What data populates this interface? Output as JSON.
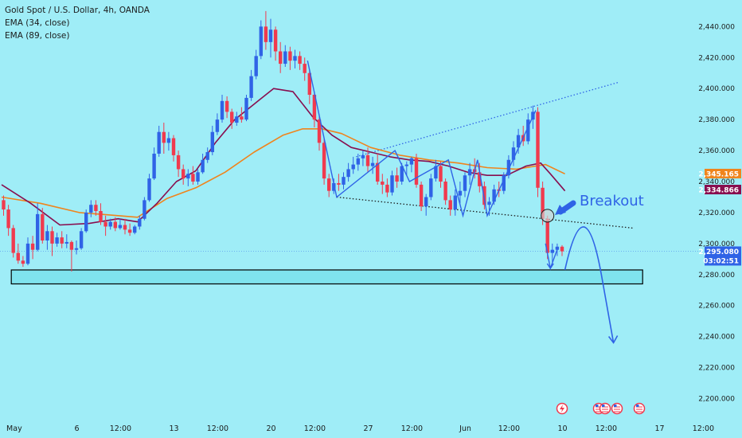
{
  "chart_data": {
    "type": "candlestick",
    "title": "Gold Spot / U.S. Dollar, 4h, OANDA",
    "indicators": [
      "EMA (34, close)",
      "EMA (89, close)"
    ],
    "ylim": [
      2190,
      2452
    ],
    "yticks": [
      "2,200.000",
      "2,220.000",
      "2,240.000",
      "2,260.000",
      "2,280.000",
      "2,300.000",
      "2,320.000",
      "2,340.000",
      "2,360.000",
      "2,380.000",
      "2,400.000",
      "2,420.000",
      "2,440.000"
    ],
    "ytick_values": [
      2200,
      2220,
      2240,
      2260,
      2280,
      2300,
      2320,
      2340,
      2360,
      2380,
      2400,
      2420,
      2440
    ],
    "xlim": [
      0,
      154
    ],
    "xticks": [
      {
        "i": 0.5,
        "label": "May"
      },
      {
        "i": 15,
        "label": "6"
      },
      {
        "i": 24,
        "label": "12:00"
      },
      {
        "i": 35,
        "label": "13"
      },
      {
        "i": 44,
        "label": "12:00"
      },
      {
        "i": 55,
        "label": "20"
      },
      {
        "i": 64,
        "label": "12:00"
      },
      {
        "i": 75,
        "label": "27"
      },
      {
        "i": 84,
        "label": "12:00"
      },
      {
        "i": 95,
        "label": "Jun"
      },
      {
        "i": 104,
        "label": "12:00"
      },
      {
        "i": 115,
        "label": "10"
      },
      {
        "i": 124,
        "label": "12:00"
      },
      {
        "i": 135,
        "label": "17"
      },
      {
        "i": 144,
        "label": "12:00"
      }
    ],
    "candles": [
      {
        "o": 2328,
        "h": 2331,
        "l": 2318,
        "c": 2322
      },
      {
        "o": 2322,
        "h": 2325,
        "l": 2305,
        "c": 2310
      },
      {
        "o": 2310,
        "h": 2312,
        "l": 2291,
        "c": 2294
      },
      {
        "o": 2294,
        "h": 2300,
        "l": 2287,
        "c": 2289
      },
      {
        "o": 2289,
        "h": 2292,
        "l": 2285,
        "c": 2287
      },
      {
        "o": 2287,
        "h": 2304,
        "l": 2286,
        "c": 2300
      },
      {
        "o": 2300,
        "h": 2305,
        "l": 2290,
        "c": 2296
      },
      {
        "o": 2296,
        "h": 2326,
        "l": 2295,
        "c": 2319
      },
      {
        "o": 2319,
        "h": 2323,
        "l": 2300,
        "c": 2302
      },
      {
        "o": 2302,
        "h": 2312,
        "l": 2296,
        "c": 2308
      },
      {
        "o": 2308,
        "h": 2311,
        "l": 2292,
        "c": 2300
      },
      {
        "o": 2300,
        "h": 2307,
        "l": 2298,
        "c": 2304
      },
      {
        "o": 2304,
        "h": 2308,
        "l": 2297,
        "c": 2300
      },
      {
        "o": 2300,
        "h": 2306,
        "l": 2297,
        "c": 2301
      },
      {
        "o": 2301,
        "h": 2302,
        "l": 2282,
        "c": 2296
      },
      {
        "o": 2296,
        "h": 2302,
        "l": 2293,
        "c": 2297
      },
      {
        "o": 2297,
        "h": 2310,
        "l": 2296,
        "c": 2308
      },
      {
        "o": 2308,
        "h": 2322,
        "l": 2307,
        "c": 2320
      },
      {
        "o": 2320,
        "h": 2328,
        "l": 2317,
        "c": 2325
      },
      {
        "o": 2325,
        "h": 2328,
        "l": 2318,
        "c": 2321
      },
      {
        "o": 2321,
        "h": 2326,
        "l": 2312,
        "c": 2314
      },
      {
        "o": 2314,
        "h": 2318,
        "l": 2305,
        "c": 2311
      },
      {
        "o": 2311,
        "h": 2316,
        "l": 2309,
        "c": 2314
      },
      {
        "o": 2314,
        "h": 2317,
        "l": 2308,
        "c": 2310
      },
      {
        "o": 2310,
        "h": 2316,
        "l": 2309,
        "c": 2312
      },
      {
        "o": 2312,
        "h": 2316,
        "l": 2306,
        "c": 2309
      },
      {
        "o": 2309,
        "h": 2313,
        "l": 2305,
        "c": 2307
      },
      {
        "o": 2307,
        "h": 2312,
        "l": 2306,
        "c": 2311
      },
      {
        "o": 2311,
        "h": 2318,
        "l": 2309,
        "c": 2316
      },
      {
        "o": 2316,
        "h": 2330,
        "l": 2315,
        "c": 2328
      },
      {
        "o": 2328,
        "h": 2345,
        "l": 2327,
        "c": 2342
      },
      {
        "o": 2342,
        "h": 2362,
        "l": 2341,
        "c": 2358
      },
      {
        "o": 2358,
        "h": 2376,
        "l": 2356,
        "c": 2372
      },
      {
        "o": 2372,
        "h": 2378,
        "l": 2358,
        "c": 2365
      },
      {
        "o": 2365,
        "h": 2372,
        "l": 2360,
        "c": 2368
      },
      {
        "o": 2368,
        "h": 2370,
        "l": 2353,
        "c": 2357
      },
      {
        "o": 2357,
        "h": 2360,
        "l": 2343,
        "c": 2348
      },
      {
        "o": 2348,
        "h": 2351,
        "l": 2338,
        "c": 2342
      },
      {
        "o": 2342,
        "h": 2348,
        "l": 2337,
        "c": 2345
      },
      {
        "o": 2345,
        "h": 2350,
        "l": 2338,
        "c": 2340
      },
      {
        "o": 2340,
        "h": 2348,
        "l": 2338,
        "c": 2346
      },
      {
        "o": 2346,
        "h": 2358,
        "l": 2345,
        "c": 2354
      },
      {
        "o": 2354,
        "h": 2362,
        "l": 2352,
        "c": 2359
      },
      {
        "o": 2359,
        "h": 2376,
        "l": 2357,
        "c": 2372
      },
      {
        "o": 2372,
        "h": 2384,
        "l": 2370,
        "c": 2380
      },
      {
        "o": 2380,
        "h": 2396,
        "l": 2378,
        "c": 2392
      },
      {
        "o": 2392,
        "h": 2395,
        "l": 2381,
        "c": 2385
      },
      {
        "o": 2385,
        "h": 2387,
        "l": 2374,
        "c": 2378
      },
      {
        "o": 2378,
        "h": 2385,
        "l": 2376,
        "c": 2382
      },
      {
        "o": 2382,
        "h": 2388,
        "l": 2378,
        "c": 2380
      },
      {
        "o": 2380,
        "h": 2396,
        "l": 2379,
        "c": 2394
      },
      {
        "o": 2394,
        "h": 2412,
        "l": 2392,
        "c": 2408
      },
      {
        "o": 2408,
        "h": 2425,
        "l": 2406,
        "c": 2421
      },
      {
        "o": 2421,
        "h": 2444,
        "l": 2419,
        "c": 2440
      },
      {
        "o": 2440,
        "h": 2450,
        "l": 2425,
        "c": 2430
      },
      {
        "o": 2430,
        "h": 2445,
        "l": 2420,
        "c": 2438
      },
      {
        "o": 2438,
        "h": 2440,
        "l": 2418,
        "c": 2424
      },
      {
        "o": 2424,
        "h": 2430,
        "l": 2410,
        "c": 2416
      },
      {
        "o": 2416,
        "h": 2428,
        "l": 2414,
        "c": 2424
      },
      {
        "o": 2424,
        "h": 2427,
        "l": 2412,
        "c": 2418
      },
      {
        "o": 2418,
        "h": 2425,
        "l": 2413,
        "c": 2421
      },
      {
        "o": 2421,
        "h": 2424,
        "l": 2412,
        "c": 2416
      },
      {
        "o": 2416,
        "h": 2420,
        "l": 2405,
        "c": 2410
      },
      {
        "o": 2410,
        "h": 2412,
        "l": 2390,
        "c": 2396
      },
      {
        "o": 2396,
        "h": 2398,
        "l": 2375,
        "c": 2380
      },
      {
        "o": 2380,
        "h": 2383,
        "l": 2360,
        "c": 2365
      },
      {
        "o": 2365,
        "h": 2368,
        "l": 2338,
        "c": 2342
      },
      {
        "o": 2342,
        "h": 2345,
        "l": 2330,
        "c": 2334
      },
      {
        "o": 2334,
        "h": 2342,
        "l": 2332,
        "c": 2339
      },
      {
        "o": 2339,
        "h": 2345,
        "l": 2334,
        "c": 2338
      },
      {
        "o": 2338,
        "h": 2346,
        "l": 2335,
        "c": 2343
      },
      {
        "o": 2343,
        "h": 2352,
        "l": 2340,
        "c": 2348
      },
      {
        "o": 2348,
        "h": 2356,
        "l": 2345,
        "c": 2351
      },
      {
        "o": 2351,
        "h": 2358,
        "l": 2347,
        "c": 2355
      },
      {
        "o": 2355,
        "h": 2360,
        "l": 2350,
        "c": 2357
      },
      {
        "o": 2357,
        "h": 2362,
        "l": 2346,
        "c": 2350
      },
      {
        "o": 2350,
        "h": 2356,
        "l": 2345,
        "c": 2352
      },
      {
        "o": 2352,
        "h": 2358,
        "l": 2338,
        "c": 2340
      },
      {
        "o": 2340,
        "h": 2345,
        "l": 2332,
        "c": 2338
      },
      {
        "o": 2338,
        "h": 2342,
        "l": 2330,
        "c": 2333
      },
      {
        "o": 2333,
        "h": 2347,
        "l": 2331,
        "c": 2344
      },
      {
        "o": 2344,
        "h": 2349,
        "l": 2336,
        "c": 2340
      },
      {
        "o": 2340,
        "h": 2352,
        "l": 2338,
        "c": 2350
      },
      {
        "o": 2350,
        "h": 2353,
        "l": 2344,
        "c": 2351
      },
      {
        "o": 2351,
        "h": 2356,
        "l": 2346,
        "c": 2355
      },
      {
        "o": 2355,
        "h": 2358,
        "l": 2336,
        "c": 2338
      },
      {
        "o": 2338,
        "h": 2340,
        "l": 2321,
        "c": 2324
      },
      {
        "o": 2324,
        "h": 2332,
        "l": 2318,
        "c": 2330
      },
      {
        "o": 2330,
        "h": 2345,
        "l": 2328,
        "c": 2342
      },
      {
        "o": 2342,
        "h": 2354,
        "l": 2340,
        "c": 2350
      },
      {
        "o": 2350,
        "h": 2353,
        "l": 2336,
        "c": 2340
      },
      {
        "o": 2340,
        "h": 2342,
        "l": 2325,
        "c": 2328
      },
      {
        "o": 2328,
        "h": 2331,
        "l": 2318,
        "c": 2322
      },
      {
        "o": 2322,
        "h": 2335,
        "l": 2318,
        "c": 2331
      },
      {
        "o": 2331,
        "h": 2340,
        "l": 2326,
        "c": 2334
      },
      {
        "o": 2334,
        "h": 2346,
        "l": 2330,
        "c": 2344
      },
      {
        "o": 2344,
        "h": 2352,
        "l": 2338,
        "c": 2348
      },
      {
        "o": 2348,
        "h": 2355,
        "l": 2342,
        "c": 2346
      },
      {
        "o": 2346,
        "h": 2352,
        "l": 2333,
        "c": 2337
      },
      {
        "o": 2337,
        "h": 2340,
        "l": 2322,
        "c": 2325
      },
      {
        "o": 2325,
        "h": 2330,
        "l": 2318,
        "c": 2327
      },
      {
        "o": 2327,
        "h": 2338,
        "l": 2325,
        "c": 2335
      },
      {
        "o": 2335,
        "h": 2340,
        "l": 2330,
        "c": 2334
      },
      {
        "o": 2334,
        "h": 2346,
        "l": 2332,
        "c": 2344
      },
      {
        "o": 2344,
        "h": 2357,
        "l": 2342,
        "c": 2354
      },
      {
        "o": 2354,
        "h": 2366,
        "l": 2350,
        "c": 2362
      },
      {
        "o": 2362,
        "h": 2374,
        "l": 2358,
        "c": 2370
      },
      {
        "o": 2370,
        "h": 2376,
        "l": 2363,
        "c": 2366
      },
      {
        "o": 2366,
        "h": 2384,
        "l": 2364,
        "c": 2380
      },
      {
        "o": 2380,
        "h": 2389,
        "l": 2374,
        "c": 2385
      },
      {
        "o": 2385,
        "h": 2388,
        "l": 2330,
        "c": 2336
      },
      {
        "o": 2336,
        "h": 2340,
        "l": 2312,
        "c": 2316
      },
      {
        "o": 2316,
        "h": 2318,
        "l": 2290,
        "c": 2294
      },
      {
        "o": 2294,
        "h": 2300,
        "l": 2288,
        "c": 2296
      },
      {
        "o": 2296,
        "h": 2300,
        "l": 2292,
        "c": 2298
      },
      {
        "o": 2298,
        "h": 2299,
        "l": 2292,
        "c": 2295
      }
    ],
    "ema34": [
      [
        0,
        2338
      ],
      [
        6,
        2326
      ],
      [
        12,
        2312
      ],
      [
        18,
        2313
      ],
      [
        24,
        2316
      ],
      [
        28,
        2314
      ],
      [
        32,
        2326
      ],
      [
        36,
        2340
      ],
      [
        40,
        2347
      ],
      [
        44,
        2365
      ],
      [
        48,
        2380
      ],
      [
        52,
        2390
      ],
      [
        56,
        2400
      ],
      [
        60,
        2398
      ],
      [
        64,
        2382
      ],
      [
        68,
        2370
      ],
      [
        72,
        2362
      ],
      [
        76,
        2359
      ],
      [
        80,
        2356
      ],
      [
        84,
        2354
      ],
      [
        88,
        2353
      ],
      [
        92,
        2350
      ],
      [
        96,
        2346
      ],
      [
        100,
        2344
      ],
      [
        104,
        2344
      ],
      [
        108,
        2350
      ],
      [
        111,
        2352
      ],
      [
        113,
        2345
      ],
      [
        116,
        2334
      ]
    ],
    "ema89": [
      [
        0,
        2330
      ],
      [
        8,
        2326
      ],
      [
        16,
        2320
      ],
      [
        24,
        2318
      ],
      [
        28,
        2317
      ],
      [
        34,
        2329
      ],
      [
        40,
        2336
      ],
      [
        46,
        2346
      ],
      [
        52,
        2359
      ],
      [
        58,
        2370
      ],
      [
        62,
        2374
      ],
      [
        66,
        2374
      ],
      [
        70,
        2371
      ],
      [
        76,
        2362
      ],
      [
        82,
        2357
      ],
      [
        88,
        2354
      ],
      [
        94,
        2352
      ],
      [
        100,
        2349
      ],
      [
        106,
        2348
      ],
      [
        110,
        2350
      ],
      [
        112,
        2351
      ],
      [
        116,
        2345
      ]
    ],
    "current_price": "2,295.080",
    "countdown": "03:02:51",
    "ema89_price": "2,345.165",
    "ema34_price": "2,334.866",
    "annotation": "Breakout",
    "support_zone": [
      2274,
      2283
    ],
    "colors": {
      "background": "#9fedf7",
      "up": "#2f63e6",
      "down": "#f03a4e",
      "ema34": "#880e4f",
      "ema89": "#f0841c",
      "pattern": "#2f63e6",
      "zone": "#7fe3ee"
    }
  }
}
